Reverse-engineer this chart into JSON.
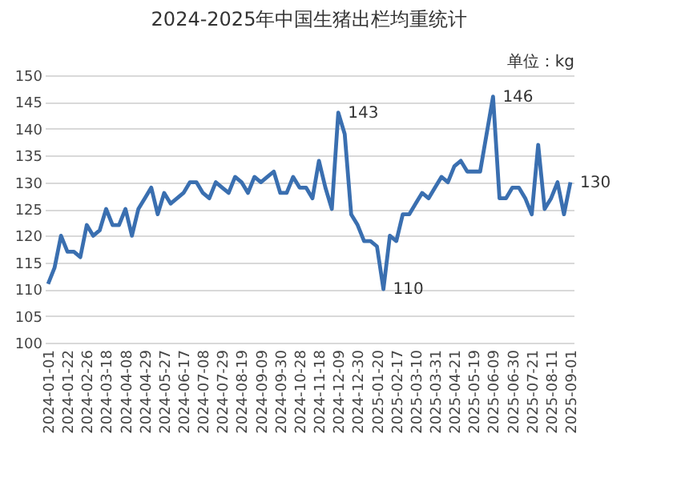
{
  "chart_data": {
    "type": "line",
    "title": "2024-2025年中国生猪出栏均重统计",
    "ylabel": "单位：kg",
    "categories": [
      "2024-01-01",
      null,
      null,
      "2024-01-22",
      null,
      null,
      "2024-02-26",
      null,
      null,
      "2024-03-18",
      null,
      null,
      "2024-04-08",
      null,
      null,
      "2024-04-29",
      null,
      null,
      "2024-05-27",
      null,
      null,
      "2024-06-17",
      null,
      null,
      "2024-07-08",
      null,
      null,
      "2024-07-29",
      null,
      null,
      "2024-08-19",
      null,
      null,
      "2024-09-09",
      null,
      null,
      "2024-09-30",
      null,
      null,
      "2024-10-28",
      null,
      null,
      "2024-11-18",
      null,
      null,
      "2024-12-09",
      null,
      null,
      "2024-12-30",
      null,
      null,
      "2025-01-20",
      null,
      null,
      "2025-02-17",
      null,
      null,
      "2025-03-10",
      null,
      null,
      "2025-03-31",
      null,
      null,
      "2025-04-21",
      null,
      null,
      "2025-05-19",
      null,
      null,
      "2025-06-09",
      null,
      null,
      "2025-06-30",
      null,
      null,
      "2025-07-21",
      null,
      null,
      "2025-08-11",
      null,
      null,
      "2025-09-01"
    ],
    "series": [
      {
        "color": "#3a6fb0",
        "values": [
          111,
          114,
          120,
          117,
          117,
          116,
          122,
          120,
          121,
          125,
          122,
          122,
          125,
          120,
          125,
          127,
          129,
          124,
          128,
          126,
          127,
          128,
          130,
          130,
          128,
          127,
          130,
          129,
          128,
          131,
          130,
          128,
          131,
          130,
          131,
          132,
          128,
          128,
          131,
          129,
          129,
          127,
          134,
          129,
          125,
          143,
          139,
          124,
          122,
          119,
          119,
          118,
          110,
          120,
          119,
          124,
          124,
          126,
          128,
          127,
          129,
          131,
          130,
          133,
          134,
          132,
          132,
          132,
          139,
          146,
          127,
          127,
          129,
          129,
          127,
          124,
          137,
          125,
          127,
          130,
          124,
          130
        ],
        "value_labels": [
          null,
          null,
          null,
          null,
          null,
          null,
          null,
          null,
          null,
          null,
          null,
          null,
          null,
          null,
          null,
          null,
          null,
          null,
          null,
          null,
          null,
          null,
          null,
          null,
          null,
          null,
          null,
          null,
          null,
          null,
          null,
          null,
          null,
          null,
          null,
          null,
          null,
          null,
          null,
          null,
          null,
          null,
          null,
          null,
          null,
          "143",
          null,
          null,
          null,
          null,
          null,
          null,
          "110",
          null,
          null,
          null,
          null,
          null,
          null,
          null,
          null,
          null,
          null,
          null,
          null,
          null,
          null,
          null,
          null,
          "146",
          null,
          null,
          null,
          null,
          null,
          null,
          null,
          null,
          null,
          null,
          null,
          "130"
        ]
      }
    ],
    "ylim": [
      100,
      150
    ],
    "yticks": [
      100,
      105,
      110,
      115,
      120,
      125,
      130,
      135,
      140,
      145,
      150
    ],
    "grid": "y",
    "marker": "none",
    "line_style": "solid"
  }
}
